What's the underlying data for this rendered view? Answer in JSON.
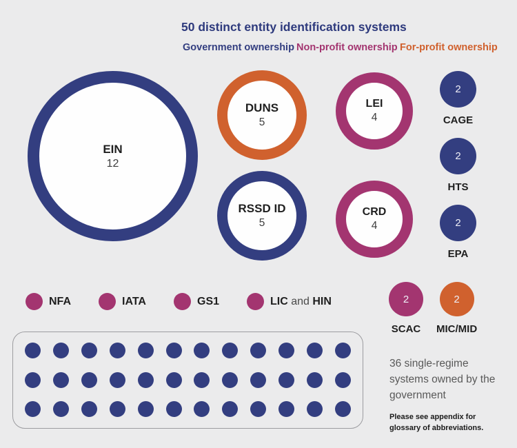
{
  "title": "50 distinct entity identification systems",
  "colors": {
    "government": "#333e80",
    "non_profit": "#a33570",
    "for_profit": "#d0612e",
    "background": "#ebebec"
  },
  "legend": {
    "government": "Government ownership",
    "non_profit": "Non-profit ownership",
    "for_profit": "For-profit ownership"
  },
  "bubbles": {
    "ein": {
      "name": "EIN",
      "count": "12"
    },
    "duns": {
      "name": "DUNS",
      "count": "5"
    },
    "rssd": {
      "name": "RSSD ID",
      "count": "5"
    },
    "lei": {
      "name": "LEI",
      "count": "4"
    },
    "crd": {
      "name": "CRD",
      "count": "4"
    },
    "cage": {
      "name": "CAGE",
      "count": "2"
    },
    "hts": {
      "name": "HTS",
      "count": "2"
    },
    "epa": {
      "name": "EPA",
      "count": "2"
    },
    "scac": {
      "name": "SCAC",
      "count": "2"
    },
    "micmid": {
      "name": "MIC/MID",
      "count": "2"
    }
  },
  "single_dots": {
    "nfa": {
      "name": "NFA"
    },
    "iata": {
      "name": "IATA"
    },
    "gs1": {
      "name": "GS1"
    },
    "lic_hin": {
      "part1": "LIC",
      "part2": " and ",
      "part3": "HIN"
    }
  },
  "dot_grid": {
    "rows": 3,
    "cols": 12,
    "total": 36
  },
  "grid_caption": "36 single-regime systems owned by the government",
  "footnote": "Please see appendix for glossary of abbreviations.",
  "chart_data": {
    "type": "bubble",
    "title": "50 distinct entity identification systems",
    "legend": [
      {
        "label": "Government ownership",
        "color": "#333e80"
      },
      {
        "label": "Non-profit ownership",
        "color": "#a33570"
      },
      {
        "label": "For-profit ownership",
        "color": "#d0612e"
      }
    ],
    "legend_position": "top",
    "points": [
      {
        "label": "EIN",
        "value": 12,
        "ownership": "government",
        "style": "ring"
      },
      {
        "label": "DUNS",
        "value": 5,
        "ownership": "for-profit",
        "style": "ring"
      },
      {
        "label": "RSSD ID",
        "value": 5,
        "ownership": "government",
        "style": "ring"
      },
      {
        "label": "LEI",
        "value": 4,
        "ownership": "non-profit",
        "style": "ring"
      },
      {
        "label": "CRD",
        "value": 4,
        "ownership": "non-profit",
        "style": "ring"
      },
      {
        "label": "CAGE",
        "value": 2,
        "ownership": "government",
        "style": "solid"
      },
      {
        "label": "HTS",
        "value": 2,
        "ownership": "government",
        "style": "solid"
      },
      {
        "label": "EPA",
        "value": 2,
        "ownership": "government",
        "style": "solid"
      },
      {
        "label": "SCAC",
        "value": 2,
        "ownership": "non-profit",
        "style": "solid"
      },
      {
        "label": "MIC/MID",
        "value": 2,
        "ownership": "for-profit",
        "style": "solid"
      },
      {
        "label": "NFA",
        "value": null,
        "ownership": "non-profit",
        "style": "dot"
      },
      {
        "label": "IATA",
        "value": null,
        "ownership": "non-profit",
        "style": "dot"
      },
      {
        "label": "GS1",
        "value": null,
        "ownership": "non-profit",
        "style": "dot"
      },
      {
        "label": "LIC and HIN",
        "value": null,
        "ownership": "non-profit",
        "style": "dot"
      }
    ],
    "grid": {
      "count": 36,
      "rows": 3,
      "cols": 12,
      "ownership": "government",
      "caption": "36 single-regime systems owned by the government"
    },
    "footnote": "Please see appendix for glossary of abbreviations."
  }
}
